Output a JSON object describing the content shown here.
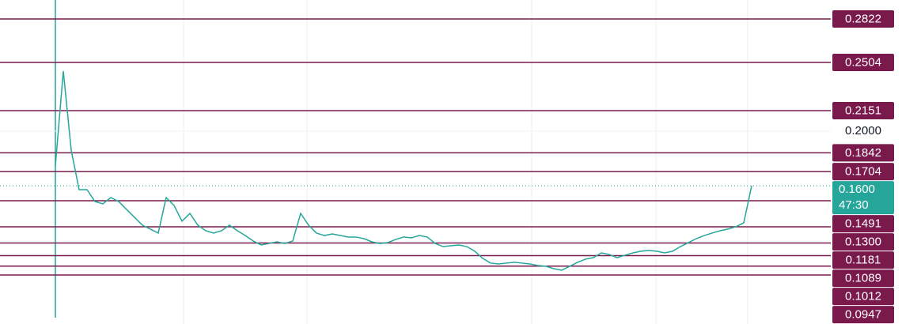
{
  "chart_data": {
    "type": "line",
    "values": [
      0.1746,
      0.244,
      0.1861,
      0.1572,
      0.1572,
      0.1485,
      0.1468,
      0.1514,
      0.1485,
      0.1427,
      0.1369,
      0.1312,
      0.1283,
      0.1254,
      0.1514,
      0.1456,
      0.1341,
      0.1398,
      0.1312,
      0.1271,
      0.1254,
      0.1271,
      0.1312,
      0.1271,
      0.1236,
      0.1196,
      0.1167,
      0.1178,
      0.119,
      0.1178,
      0.1196,
      0.1398,
      0.1312,
      0.1254,
      0.1236,
      0.1248,
      0.1236,
      0.1225,
      0.1225,
      0.1213,
      0.119,
      0.1178,
      0.1184,
      0.1207,
      0.1225,
      0.1219,
      0.1236,
      0.1225,
      0.1178,
      0.1155,
      0.1161,
      0.1167,
      0.1155,
      0.1121,
      0.1069,
      0.1034,
      0.1028,
      0.1034,
      0.104,
      0.1034,
      0.1028,
      0.1016,
      0.1011,
      0.0993,
      0.0982,
      0.1011,
      0.104,
      0.1063,
      0.1074,
      0.1109,
      0.1097,
      0.1074,
      0.1092,
      0.1109,
      0.1121,
      0.1126,
      0.1121,
      0.1109,
      0.1121,
      0.1155,
      0.1184,
      0.1213,
      0.1236,
      0.1254,
      0.1271,
      0.1283,
      0.13,
      0.1329,
      0.16
    ],
    "color": "#26a69a",
    "ylim": [
      0.0588,
      0.2961
    ],
    "yticks": [
      {
        "value": 0.2,
        "label": "0.2000"
      }
    ],
    "grid": true,
    "levels": [
      0.2822,
      0.2504,
      0.2151,
      0.1842,
      0.1704,
      0.1491,
      {
        "value": 0.13,
        "label": "0.1300"
      },
      0.1181,
      0.1089,
      0.1012,
      0.0947
    ],
    "level_color": "#7a1a4c",
    "last_price": {
      "value": 0.16,
      "label": "0.1600"
    },
    "countdown": "47:30",
    "last_color": "#26a69a"
  }
}
